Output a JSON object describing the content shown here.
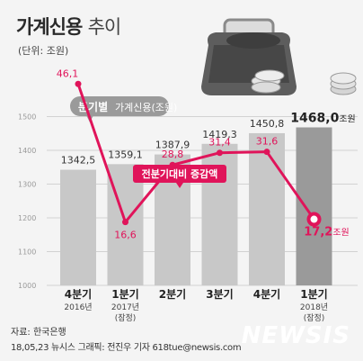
{
  "header": {
    "title": "가계신용",
    "title_suffix": "추이",
    "unit": "(단위: 조원)"
  },
  "chart_data": {
    "type": "bar",
    "categories": [
      "4분기",
      "1분기",
      "2분기",
      "3분기",
      "4분기",
      "1분기"
    ],
    "category_sublabels": [
      "2016년",
      "2017년\n(잠정)",
      "",
      "",
      "",
      "2018년\n(잠정)"
    ],
    "ylim": [
      1000,
      1520
    ],
    "yticks": [
      1000,
      1100,
      1200,
      1300,
      1400,
      1500
    ],
    "series": [
      {
        "name": "가계신용(조원)",
        "name_prefix": "분기별",
        "name_main": "가계신용(조원)",
        "type": "bar",
        "values": [
          1342.5,
          1359.1,
          1387.9,
          1419.3,
          1450.8,
          1468.0
        ],
        "labels": [
          "1342,5",
          "1359,1",
          "1387,9",
          "1419,3",
          "1450,8",
          "1468,0"
        ],
        "last_label_unit": "조원",
        "color": "#c8c8c8",
        "highlight_color": "#9a9a9a"
      },
      {
        "name": "전분기대비 증감액",
        "type": "line",
        "values": [
          46.1,
          16.6,
          28.8,
          31.4,
          31.6,
          17.2
        ],
        "labels": [
          "46,1",
          "16,6",
          "28,8",
          "31,4",
          "31,6",
          "17,2"
        ],
        "last_label_unit": "조원",
        "color": "#e0145a"
      }
    ]
  },
  "footer": {
    "source": "자료: 한국은행",
    "credit": "18,05,23 뉴시스 그래픽: 전진우 기자 618tue@newsis.com",
    "watermark": "NEWSIS"
  }
}
